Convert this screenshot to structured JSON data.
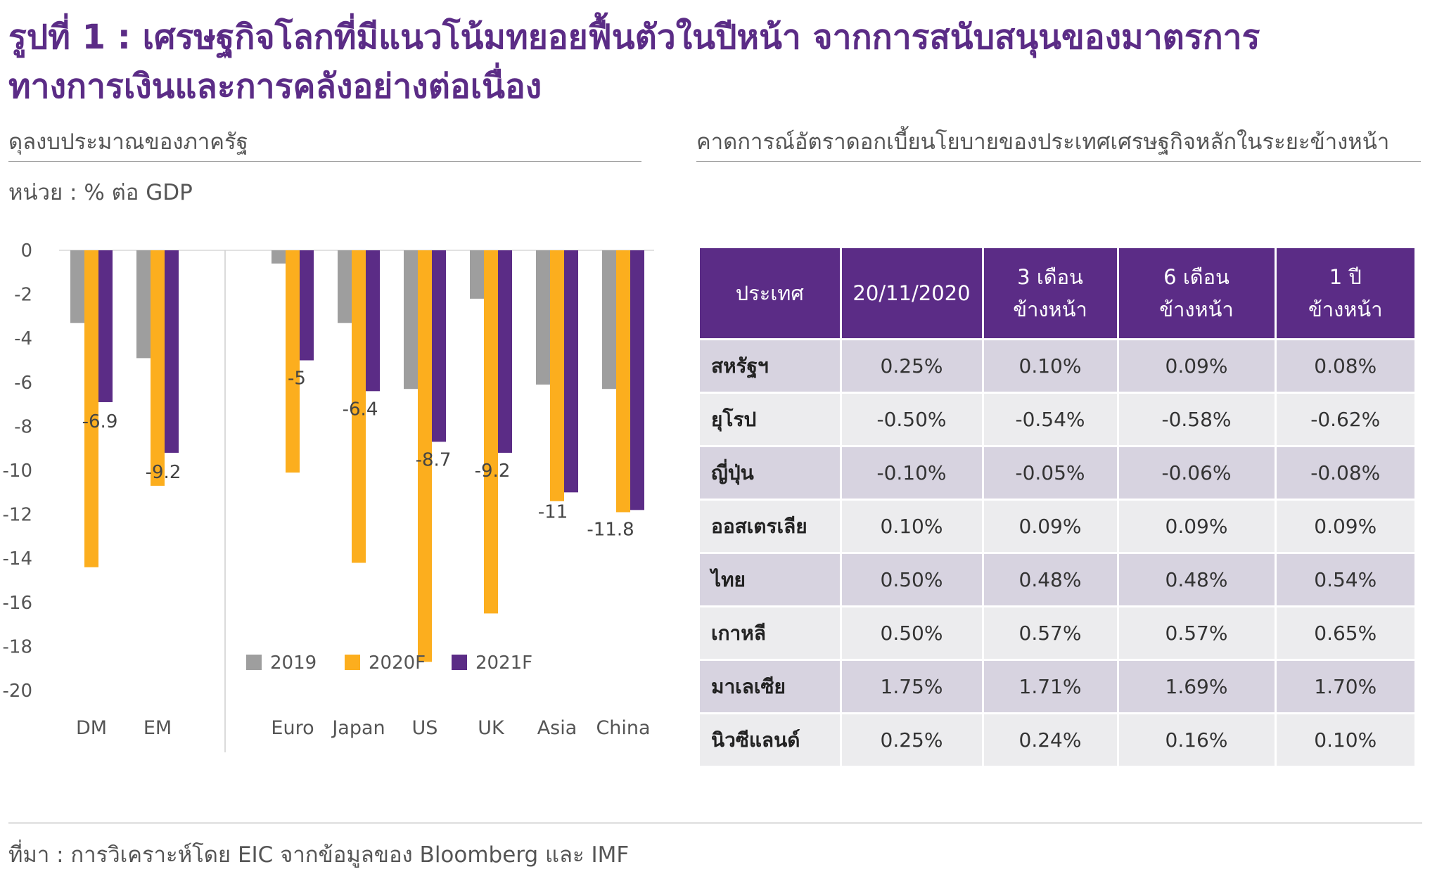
{
  "title": {
    "line1": "รูปที่ 1 : เศรษฐกิจโลกที่มีแนวโน้มทยอยฟื้นตัวในปีหน้า จากการสนับสนุนของมาตรการ",
    "line2": "ทางการเงินและการคลังอย่างต่อเนื่อง"
  },
  "left_section": {
    "title": "ดุลงบประมาณของภาครัฐ",
    "unit": "หน่วย : % ต่อ GDP"
  },
  "right_section": {
    "title": "คาดการณ์อัตราดอกเบี้ยนโยบายของประเทศเศรษฐกิจหลักในระยะข้างหน้า"
  },
  "chart_data": {
    "type": "bar",
    "title": "ดุลงบประมาณของภาครัฐ",
    "ylabel": "หน่วย : % ต่อ GDP",
    "xlabel": "",
    "categories": [
      "DM",
      "EM",
      "Euro",
      "Japan",
      "US",
      "UK",
      "Asia",
      "China"
    ],
    "series": [
      {
        "name": "2019",
        "color": "#9e9e9e",
        "values": [
          -3.3,
          -4.9,
          -0.6,
          -3.3,
          -6.3,
          -2.2,
          -6.1,
          -6.3
        ]
      },
      {
        "name": "2020F",
        "color": "#fcae1e",
        "values": [
          -14.4,
          -10.7,
          -10.1,
          -14.2,
          -18.7,
          -16.5,
          -11.4,
          -11.9
        ]
      },
      {
        "name": "2021F",
        "color": "#5b2c86",
        "values": [
          -6.9,
          -9.2,
          -5,
          -6.4,
          -8.7,
          -9.2,
          -11,
          -11.8
        ]
      }
    ],
    "data_labels": {
      "series": "2021F",
      "values": [
        "-6.9",
        "-9.2",
        "-5",
        "-6.4",
        "-8.7",
        "-9.2",
        "-11",
        "-11.8"
      ]
    },
    "y_ticks": [
      "0",
      "-2",
      "-4",
      "-6",
      "-8",
      "-10",
      "-12",
      "-14",
      "-16",
      "-18",
      "-20"
    ],
    "ylim": [
      -20,
      0
    ],
    "grid": false,
    "legend": "bottom-right, inside plot",
    "group_separator_after": "EM"
  },
  "table": {
    "headers": [
      {
        "line1": "ประเทศ",
        "line2": ""
      },
      {
        "line1": "20/11/2020",
        "line2": ""
      },
      {
        "line1": "3 เดือน",
        "line2": "ข้างหน้า"
      },
      {
        "line1": "6 เดือน",
        "line2": "ข้างหน้า"
      },
      {
        "line1": "1 ปี",
        "line2": "ข้างหน้า"
      }
    ],
    "rows": [
      [
        "สหรัฐฯ",
        "0.25%",
        "0.10%",
        "0.09%",
        "0.08%"
      ],
      [
        "ยุโรป",
        "-0.50%",
        "-0.54%",
        "-0.58%",
        "-0.62%"
      ],
      [
        "ญี่ปุ่น",
        "-0.10%",
        "-0.05%",
        "-0.06%",
        "-0.08%"
      ],
      [
        "ออสเตรเลีย",
        "0.10%",
        "0.09%",
        "0.09%",
        "0.09%"
      ],
      [
        "ไทย",
        "0.50%",
        "0.48%",
        "0.48%",
        "0.54%"
      ],
      [
        "เกาหลี",
        "0.50%",
        "0.57%",
        "0.57%",
        "0.65%"
      ],
      [
        "มาเลเซีย",
        "1.75%",
        "1.71%",
        "1.69%",
        "1.70%"
      ],
      [
        "นิวซีแลนด์",
        "0.25%",
        "0.24%",
        "0.16%",
        "0.10%"
      ]
    ],
    "header_color": "#5b2c86"
  },
  "source": "ที่มา : การวิเคราะห์โดย EIC จากข้อมูลของ Bloomberg และ IMF"
}
